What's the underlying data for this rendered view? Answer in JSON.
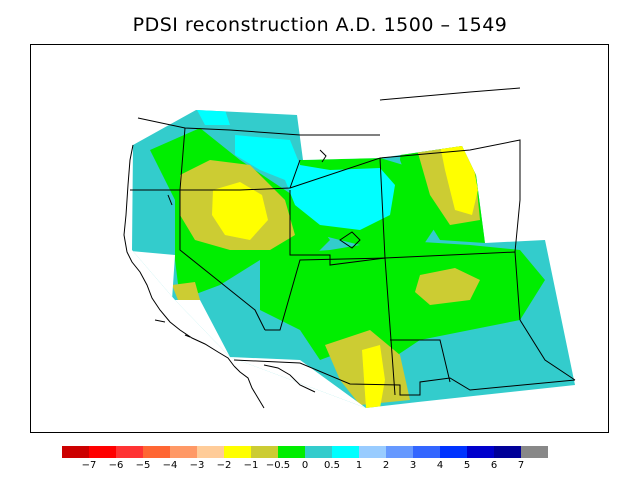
{
  "title": "PDSI reconstruction A.D. 1500 – 1549",
  "colors": {
    "water": "#ffffff",
    "outline": "#000000",
    "levels": {
      "lt_m1": "#ffff00",
      "m1_m05": "#cccc33",
      "m05_0": "#00ee00",
      "0_05": "#33cccc",
      "05_1": "#00ffff"
    }
  },
  "legend": {
    "swatches": [
      "#cc0000",
      "#ff0000",
      "#ff3333",
      "#ff6633",
      "#ff9966",
      "#ffcc99",
      "#ffff00",
      "#cccc33",
      "#00ee00",
      "#33cccc",
      "#00ffff",
      "#99ccff",
      "#6699ff",
      "#3366ff",
      "#0033ff",
      "#0000cc",
      "#000099",
      "#888888"
    ],
    "labels": [
      "−7",
      "−6",
      "−5",
      "−4",
      "−3",
      "−2",
      "−1",
      "−0.5",
      "0",
      "0.5",
      "1",
      "2",
      "3",
      "4",
      "5",
      "6",
      "7"
    ]
  }
}
